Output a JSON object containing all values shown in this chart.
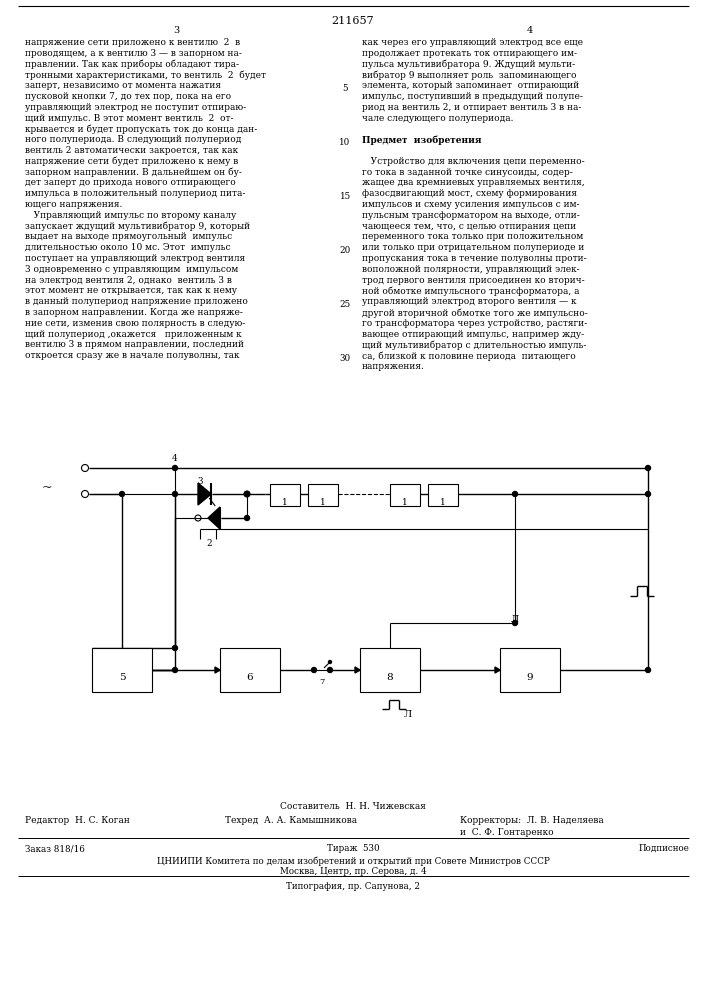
{
  "title_num": "211657",
  "page_num_left": "3",
  "page_num_right": "4",
  "footer_compiler": "Составитель  Н. Н. Чижевская",
  "footer_editor": "Редактор  Н. С. Коган",
  "footer_techred": "Техред  А. А. Камышникова",
  "footer_correctors": "Корректоры:  Л. В. Наделяева",
  "footer_correctors2": "и  С. Ф. Гонтаренко",
  "footer_order": "Заказ 818/16",
  "footer_tirazh": "Тираж  530",
  "footer_podpisnoe": "Подписное",
  "footer_org": "ЦНИИПИ Комитета по делам изобретений и открытий при Совете Министров СССР",
  "footer_address": "Москва, Центр, пр. Серова, д. 4",
  "footer_typography": "Типография, пр. Сапунова, 2",
  "bg_color": "#ffffff",
  "left_col_lines": [
    "напряжение сети приложено к вентилю  2  в",
    "проводящем, а к вентилю 3 — в запорном на-",
    "правлении. Так как приборы обладают тира-",
    "тронными характеристиками, то вентиль  2  будет",
    "заперт, независимо от момента нажатия",
    "пусковой кнопки 7, до тех пор, пока на его",
    "управляющий электрод не поступит отпираю-",
    "щий импульс. В этот момент вентиль  2  от-",
    "крывается и будет пропускать ток до конца дан-",
    "ного полупериода. В следующий полупериод",
    "вентиль 2 автоматически закроется, так как",
    "напряжение сети будет приложено к нему в",
    "запорном направлении. В дальнейшем он бу-",
    "дет заперт до прихода нового отпирающего",
    "импульса в положительный полупериод пита-",
    "ющего напряжения.",
    "   Управляющий импульс по второму каналу",
    "запускает ждущий мультивибратор 9, который",
    "выдает на выходе прямоугольный  импульс",
    "длительностью около 10 мс. Этот  импульс",
    "поступает на управляющий электрод вентиля",
    "3 одновременно с управляющим  импульсом",
    "на электрод вентиля 2, однако  вентиль 3 в",
    "этот момент не открывается, так как к нему",
    "в данный полупериод напряжение приложено",
    "в запорном направлении. Когда же напряже-",
    "ние сети, изменив свою полярность в следую-",
    "щий полупериод ,окажется   приложенным к",
    "вентилю 3 в прямом направлении, последний",
    "откроется сразу же в начале полуволны, так"
  ],
  "right_col_lines": [
    "как через его управляющий электрод все еще",
    "продолжает протекать ток отпирающего им-",
    "пульса мультивибратора 9. Ждущий мульти-",
    "вибратор 9 выполняет роль  запоминающего",
    "элемента, который запоминает  отпирающий",
    "импульс, поступивший в предыдущий полупе-",
    "риод на вентиль 2, и отпирает вентиль 3 в на-",
    "чале следующего полупериода.",
    "",
    "Предмет  изобретения",
    "",
    "   Устройство для включения цепи переменно-",
    "го тока в заданной точке синусоиды, содер-",
    "жащее два кремниевых управляемых вентиля,",
    "фазосдвигающий мост, схему формирования",
    "импульсов и схему усиления импульсов с им-",
    "пульсным трансформатором на выходе, отли-",
    "чающееся тем, что, с целью отпирания цепи",
    "переменного тока только при положительном",
    "или только при отрицательном полупериоде и",
    "пропускания тока в течение полуволны проти-",
    "воположной полярности, управляющий элек-",
    "трод первого вентиля присоединен ко вторич-",
    "ной обмотке импульсного трансформатора, а",
    "управляющий электрод второго вентиля — к",
    "другой вторичной обмотке того же импульсно-",
    "го трансформатора через устройство, растяги-",
    "вающее отпирающий импульс, например жду-",
    "щий мультивибратор с длительностью импуль-",
    "са, близкой к половине периода  питающего",
    "напряжения."
  ],
  "line_nums": [
    5,
    10,
    15,
    20,
    25,
    30
  ],
  "line_num_rows": [
    4,
    9,
    14,
    19,
    24,
    29
  ]
}
